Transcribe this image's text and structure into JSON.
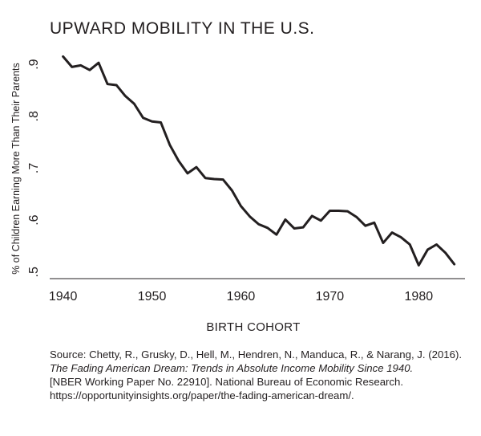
{
  "chart_data": {
    "type": "line",
    "title": "UPWARD MOBILITY IN THE U.S.",
    "xlabel": "BIRTH COHORT",
    "ylabel": "% of Children Earning More Than Their Parents",
    "xlim": [
      1938.5,
      1985.2
    ],
    "ylim": [
      0.495,
      0.928
    ],
    "xticks": [
      1940,
      1950,
      1960,
      1970,
      1980
    ],
    "xtick_labels": [
      "1940",
      "1950",
      "1960",
      "1970",
      "1980"
    ],
    "yticks": [
      0.5,
      0.6,
      0.7,
      0.8,
      0.9
    ],
    "ytick_labels": [
      ".5",
      ".6",
      ".7",
      ".8",
      ".9"
    ],
    "grid": false,
    "series": [
      {
        "x": [
          1940,
          1941,
          1942,
          1943,
          1944,
          1945,
          1946,
          1947,
          1948,
          1949,
          1950,
          1951,
          1952,
          1953,
          1954,
          1955,
          1956,
          1957,
          1958,
          1959,
          1960,
          1961,
          1962,
          1963,
          1964,
          1965,
          1966,
          1967,
          1968,
          1969,
          1970,
          1971,
          1972,
          1973,
          1974,
          1975,
          1976,
          1977,
          1978,
          1979,
          1980,
          1981,
          1982,
          1983,
          1984
        ],
        "values": [
          0.915,
          0.895,
          0.898,
          0.889,
          0.903,
          0.862,
          0.86,
          0.839,
          0.824,
          0.797,
          0.79,
          0.788,
          0.745,
          0.714,
          0.69,
          0.702,
          0.681,
          0.679,
          0.678,
          0.657,
          0.627,
          0.607,
          0.592,
          0.585,
          0.572,
          0.601,
          0.584,
          0.586,
          0.608,
          0.599,
          0.618,
          0.618,
          0.617,
          0.606,
          0.589,
          0.595,
          0.556,
          0.576,
          0.567,
          0.553,
          0.513,
          0.543,
          0.553,
          0.537,
          0.515
        ],
        "color": "#231f20"
      }
    ]
  },
  "source": {
    "line1": "Source: Chetty, R., Grusky, D., Hell, M., Hendren, N., Manduca, R., & Narang, J. (2016).",
    "line2": "The Fading American Dream: Trends in Absolute Income Mobility Since 1940.",
    "line3": "[NBER Working Paper No. 22910]. National Bureau of Economic Research.",
    "line4": "https://opportunityinsights.org/paper/the-fading-american-dream/."
  }
}
